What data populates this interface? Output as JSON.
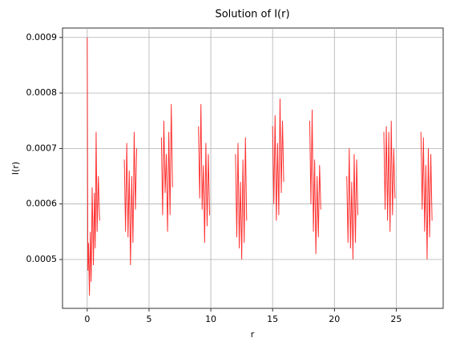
{
  "chart_data": {
    "type": "line",
    "title": "Solution of I(r)",
    "x_label": "r",
    "y_label": "I(r)",
    "x": [
      0,
      0.05,
      0.1,
      0.18,
      0.25,
      0.32,
      0.4,
      0.5,
      0.58,
      0.65,
      0.72,
      0.8,
      0.9,
      1.0,
      2,
      3.0,
      3.1,
      3.2,
      3.3,
      3.4,
      3.5,
      3.6,
      3.7,
      3.8,
      3.9,
      4.0,
      5,
      6.0,
      6.1,
      6.2,
      6.3,
      6.4,
      6.5,
      6.6,
      6.7,
      6.8,
      6.9,
      8,
      9.0,
      9.1,
      9.2,
      9.3,
      9.4,
      9.5,
      9.6,
      9.7,
      9.8,
      9.9,
      11,
      12.0,
      12.1,
      12.2,
      12.3,
      12.4,
      12.5,
      12.6,
      12.7,
      12.8,
      12.9,
      14,
      15.0,
      15.1,
      15.2,
      15.3,
      15.4,
      15.5,
      15.6,
      15.7,
      15.8,
      15.9,
      17,
      18.0,
      18.1,
      18.2,
      18.3,
      18.4,
      18.5,
      18.6,
      18.7,
      18.8,
      18.9,
      20,
      21.0,
      21.1,
      21.2,
      21.3,
      21.4,
      21.5,
      21.6,
      21.7,
      21.8,
      21.9,
      23,
      24.0,
      24.1,
      24.2,
      24.3,
      24.4,
      24.5,
      24.6,
      24.7,
      24.8,
      24.9,
      26,
      27.0,
      27.1,
      27.2,
      27.3,
      27.4,
      27.5,
      27.6,
      27.7,
      27.8,
      27.9
    ],
    "series": [
      {
        "name": "I(r)",
        "color": "#ff0000",
        "values": [
          0.0009,
          0.00048,
          0.00053,
          0.000435,
          0.00055,
          0.00046,
          0.00063,
          0.00049,
          0.00062,
          0.00052,
          0.00073,
          0.00055,
          0.00065,
          0.00057,
          null,
          0.00068,
          0.00055,
          0.00071,
          0.00054,
          0.00066,
          0.00049,
          0.00065,
          0.00053,
          0.00073,
          0.00059,
          0.0007,
          null,
          0.00072,
          0.00058,
          0.00075,
          0.00062,
          0.00069,
          0.00055,
          0.00073,
          0.00058,
          0.00078,
          0.00063,
          null,
          0.00074,
          0.00061,
          0.00078,
          0.00059,
          0.00067,
          0.00053,
          0.00071,
          0.00056,
          0.00069,
          0.00058,
          null,
          0.00069,
          0.00054,
          0.00071,
          0.00052,
          0.00064,
          0.0005,
          0.00068,
          0.00053,
          0.00072,
          0.00057,
          null,
          0.00074,
          0.0006,
          0.00076,
          0.00057,
          0.00071,
          0.00058,
          0.00079,
          0.00062,
          0.00075,
          0.00064,
          null,
          0.00075,
          0.0006,
          0.00077,
          0.00055,
          0.00068,
          0.00051,
          0.00065,
          0.00054,
          0.00067,
          0.00059,
          null,
          0.00065,
          0.00053,
          0.0007,
          0.00052,
          0.00064,
          0.0005,
          0.00069,
          0.00053,
          0.00068,
          0.00058,
          null,
          0.00073,
          0.00059,
          0.00074,
          0.00057,
          0.00073,
          0.00055,
          0.00075,
          0.00058,
          0.0007,
          0.00061,
          null,
          0.00073,
          0.00059,
          0.00072,
          0.00055,
          0.00067,
          0.0005,
          0.0007,
          0.00054,
          0.00069,
          0.00057
        ]
      }
    ],
    "xlim": [
      -2.0,
      28.8
    ],
    "ylim": [
      0.000412,
      0.000917
    ],
    "xticks": [
      0,
      5,
      10,
      15,
      20,
      25
    ],
    "yticks": [
      0.0005,
      0.0006,
      0.0007,
      0.0008,
      0.0009
    ],
    "grid": true
  }
}
